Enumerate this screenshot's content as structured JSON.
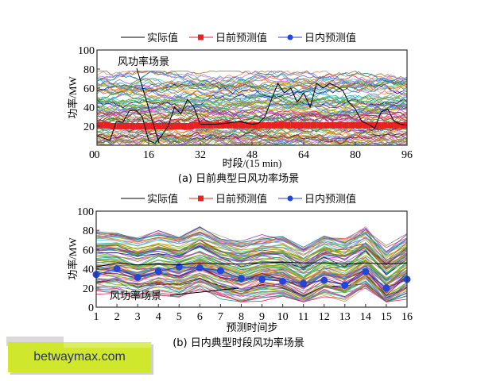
{
  "legend": {
    "actual": "实际值",
    "day_ahead": "日前预测值",
    "intraday": "日内预测值"
  },
  "colors": {
    "actual": "#000000",
    "day_ahead": "#e8201f",
    "intraday": "#2346d8",
    "axis": "#333333"
  },
  "watermark": {
    "text": "betwaymax.com"
  },
  "chart_data": [
    {
      "type": "line",
      "title": "(a) 日前典型日风功率场景",
      "xlabel": "时段/(15 min)",
      "ylabel": "功率/MW",
      "annotation": "风功率场景",
      "xlim": [
        0,
        96
      ],
      "ylim": [
        0,
        100
      ],
      "xticks": [
        0,
        16,
        32,
        48,
        64,
        80,
        96
      ],
      "yticks": [
        20,
        40,
        60,
        80,
        100
      ],
      "ytick_labels": [
        "20",
        "40",
        "60",
        "80",
        "100"
      ],
      "origin_label": "0",
      "grid": false,
      "legend_position": "top",
      "series": [
        {
          "name": "日前预测值",
          "marker": "square",
          "x": [
            1,
            3,
            5,
            7,
            9,
            11,
            13,
            15,
            17,
            19,
            21,
            23,
            25,
            27,
            29,
            31,
            33,
            35,
            37,
            39,
            41,
            43,
            45,
            47,
            49,
            51,
            53,
            55,
            57,
            59,
            61,
            63,
            65,
            67,
            69,
            71,
            73,
            75,
            77,
            79,
            81,
            83,
            85,
            87,
            89,
            91,
            93,
            95
          ],
          "values": [
            21,
            21,
            20,
            20,
            20,
            20,
            20,
            20,
            20,
            20,
            20,
            20,
            20,
            20,
            20,
            21,
            21,
            21,
            21,
            21,
            21,
            21,
            21,
            21,
            21,
            21,
            21,
            21,
            21,
            21,
            21,
            21,
            21,
            21,
            21,
            21,
            21,
            21,
            21,
            21,
            21,
            21,
            21,
            21,
            21,
            21,
            21,
            21
          ]
        },
        {
          "name": "实际值",
          "x": [
            0,
            4,
            6,
            8,
            10,
            12,
            14,
            16,
            18,
            20,
            22,
            24,
            26,
            28,
            30,
            32,
            36,
            40,
            44,
            48,
            50,
            52,
            54,
            56,
            58,
            60,
            62,
            64,
            66,
            68,
            70,
            72,
            74,
            76,
            78,
            80,
            82,
            84,
            86,
            88,
            90,
            92,
            94,
            96
          ],
          "values": [
            10,
            5,
            25,
            24,
            36,
            37,
            30,
            5,
            2,
            10,
            20,
            40,
            33,
            48,
            40,
            22,
            22,
            23,
            25,
            22,
            23,
            30,
            48,
            65,
            55,
            60,
            45,
            55,
            40,
            65,
            60,
            65,
            62,
            58,
            45,
            38,
            25,
            22,
            18,
            35,
            38,
            25,
            22,
            21
          ]
        }
      ],
      "scenario_band": {
        "count": 100,
        "min": 0,
        "max": 78,
        "center": 35
      }
    },
    {
      "type": "line",
      "title": "(b) 日内典型时段风功率场景",
      "xlabel": "预测时间步",
      "ylabel": "功率/MW",
      "annotation": "风功率场景",
      "xlim": [
        1,
        16
      ],
      "ylim": [
        0,
        100
      ],
      "xticks": [
        1,
        2,
        3,
        4,
        5,
        6,
        7,
        8,
        9,
        10,
        11,
        12,
        13,
        14,
        15,
        16
      ],
      "yticks": [
        0,
        20,
        40,
        60,
        80,
        100
      ],
      "ytick_labels": [
        "0",
        "20",
        "40",
        "60",
        "80",
        "100"
      ],
      "grid": false,
      "legend_position": "top",
      "series": [
        {
          "name": "日内预测值",
          "marker": "circle",
          "x": [
            1,
            2,
            3,
            4,
            5,
            6,
            7,
            8,
            9,
            10,
            11,
            12,
            13,
            14,
            15,
            16
          ],
          "values": [
            34,
            40,
            31,
            37,
            42,
            41,
            38,
            30,
            29,
            27,
            25,
            28,
            23,
            37,
            20,
            29
          ]
        },
        {
          "name": "实际值",
          "x": [
            1,
            2,
            3,
            4,
            5,
            6,
            7,
            8,
            9,
            10,
            11,
            12,
            13,
            14,
            15,
            16
          ],
          "values": [
            42,
            46,
            44,
            45,
            44,
            46,
            45,
            45,
            46,
            47,
            46,
            46,
            45,
            46,
            45,
            46
          ]
        }
      ],
      "scenario_band": {
        "count": 100,
        "min": 5,
        "max": 88,
        "center": 45
      }
    }
  ]
}
